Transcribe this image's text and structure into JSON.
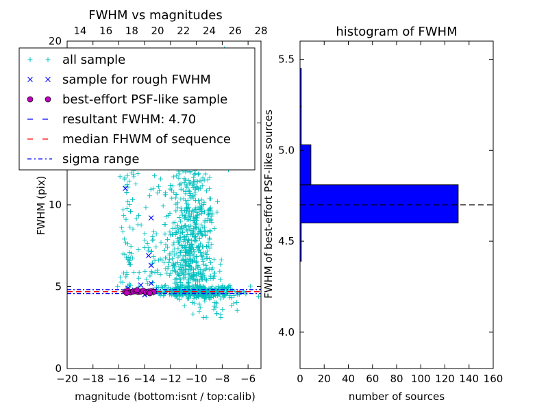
{
  "chart_data": [
    {
      "type": "scatter",
      "title": "FWHM vs magnitudes",
      "xlabel": "magnitude (bottom:isnt / top:calib)",
      "ylabel": "FWHM (pix)",
      "xlim": [
        -20,
        -5
      ],
      "ylim": [
        0,
        20
      ],
      "top_xlim": [
        13,
        28
      ],
      "x_ticks": [
        "−20",
        "−18",
        "−16",
        "−14",
        "−12",
        "−10",
        "−8",
        "−6"
      ],
      "x_tick_values": [
        -20,
        -18,
        -16,
        -14,
        -12,
        -10,
        -8,
        -6
      ],
      "top_ticks": [
        "14",
        "16",
        "18",
        "20",
        "22",
        "24",
        "26",
        "28"
      ],
      "top_tick_values": [
        14,
        16,
        18,
        20,
        22,
        24,
        26,
        28
      ],
      "y_ticks": [
        "0",
        "5",
        "10",
        "15",
        "20"
      ],
      "y_tick_values": [
        0,
        5,
        10,
        15,
        20
      ],
      "legend": {
        "placement": "upper-left",
        "entries": [
          {
            "label": "all sample",
            "marker": "plus",
            "color": "#00bfbf"
          },
          {
            "label": "sample for rough FWHM",
            "marker": "x",
            "color": "#0000ff"
          },
          {
            "label": "best-effort PSF-like sample",
            "marker": "circle",
            "color": "#bf00bf"
          },
          {
            "label": "resultant FWHM: 4.70",
            "marker": "dash",
            "color": "#0000ff"
          },
          {
            "label": "median FHWM of sequence",
            "marker": "dash",
            "color": "#ff0000"
          },
          {
            "label": "sigma range",
            "marker": "dashdot",
            "color": "#0000ff"
          }
        ]
      },
      "series": [
        {
          "name": "sample for rough FWHM",
          "points": [
            [
              -15.5,
              11.0
            ],
            [
              -13.5,
              9.2
            ],
            [
              -13.7,
              6.9
            ],
            [
              -13.5,
              6.3
            ],
            [
              -13.5,
              5.2
            ],
            [
              -14.3,
              5.1
            ],
            [
              -15.3,
              4.9
            ],
            [
              -14.8,
              4.8
            ],
            [
              -14.0,
              4.5
            ],
            [
              -13.2,
              4.8
            ]
          ]
        },
        {
          "name": "best-effort PSF-like sample",
          "points": [
            [
              -15.5,
              4.7
            ],
            [
              -15.3,
              4.75
            ],
            [
              -15.1,
              4.65
            ],
            [
              -14.9,
              4.7
            ],
            [
              -14.7,
              4.72
            ],
            [
              -14.5,
              4.68
            ],
            [
              -14.3,
              4.7
            ],
            [
              -14.1,
              4.75
            ],
            [
              -13.9,
              4.65
            ],
            [
              -13.7,
              4.7
            ],
            [
              -13.5,
              4.72
            ],
            [
              -13.3,
              4.68
            ],
            [
              -15.4,
              4.62
            ],
            [
              -14.6,
              4.78
            ],
            [
              -13.6,
              4.6
            ]
          ]
        }
      ],
      "hlines": [
        {
          "name": "resultant FWHM: 4.70",
          "y": 4.7,
          "color": "#0000ff",
          "style": "dashed"
        },
        {
          "name": "median FHWM of sequence",
          "y": 4.7,
          "color": "#ff0000",
          "style": "dashed"
        },
        {
          "name": "sigma range",
          "y": 4.58,
          "color": "#0000ff",
          "style": "dashdot"
        },
        {
          "name": "sigma range",
          "y": 4.82,
          "color": "#0000ff",
          "style": "dashdot"
        }
      ],
      "colors": {
        "all_sample": "#00bfbf",
        "rough": "#0000ff",
        "psf": "#bf00bf"
      }
    },
    {
      "type": "bar",
      "orientation": "horizontal",
      "title": "histogram of FWHM",
      "xlabel": "number of sources",
      "ylabel": "FWHM of best-effort PSF-like sources",
      "xlim": [
        0,
        160
      ],
      "ylim": [
        3.8,
        5.6
      ],
      "x_ticks": [
        "0",
        "20",
        "40",
        "60",
        "80",
        "100",
        "120",
        "140",
        "160"
      ],
      "x_tick_values": [
        0,
        20,
        40,
        60,
        80,
        100,
        120,
        140,
        160
      ],
      "y_ticks": [
        "4.0",
        "4.5",
        "5.0",
        "5.5"
      ],
      "y_tick_values": [
        4.0,
        4.5,
        5.0,
        5.5
      ],
      "bins": [
        {
          "from": 4.18,
          "to": 4.39,
          "count": 0
        },
        {
          "from": 4.39,
          "to": 4.6,
          "count": 1
        },
        {
          "from": 4.6,
          "to": 4.81,
          "count": 131
        },
        {
          "from": 4.81,
          "to": 5.03,
          "count": 9
        },
        {
          "from": 5.03,
          "to": 5.24,
          "count": 1
        },
        {
          "from": 5.24,
          "to": 5.45,
          "count": 1
        }
      ],
      "reference_line": 4.7,
      "bar_color": "#0000ff"
    }
  ]
}
